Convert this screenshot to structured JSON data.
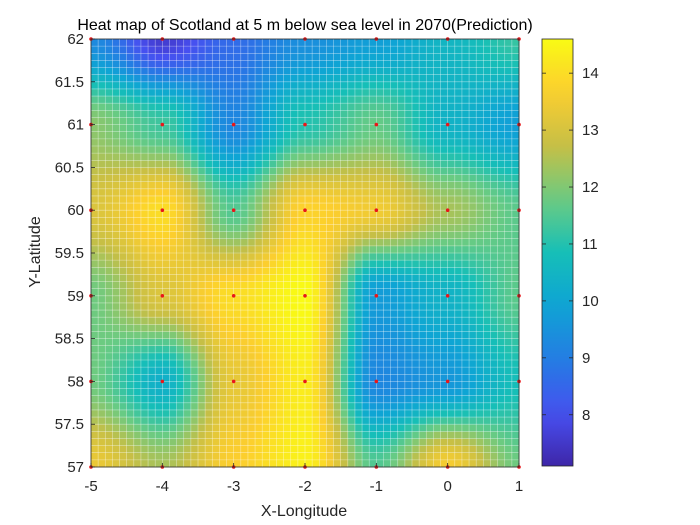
{
  "chart_data": {
    "type": "heatmap",
    "title": "Heat map of Scotland at 5 m below sea level in 2070(Prediction)",
    "xlabel": "X-Longitude",
    "ylabel": "Y-Latitude",
    "xlim": [
      -5,
      1
    ],
    "ylim": [
      57,
      62
    ],
    "x_ticks": [
      "-5",
      "-4",
      "-3",
      "-2",
      "-1",
      "0",
      "1"
    ],
    "y_ticks": [
      "57",
      "57.5",
      "58",
      "58.5",
      "59",
      "59.5",
      "60",
      "60.5",
      "61",
      "61.5",
      "62"
    ],
    "grid": true,
    "colormap": "parula",
    "colorbar": {
      "clim": [
        7.1,
        14.6
      ],
      "ticks": [
        "8",
        "9",
        "10",
        "11",
        "12",
        "13",
        "14"
      ]
    },
    "sample_x": [
      -5,
      -4,
      -3,
      -2,
      -1,
      0,
      1
    ],
    "sample_y": [
      57,
      58,
      59,
      60,
      61,
      62
    ],
    "values": [
      [
        13.4,
        12.4,
        13.7,
        14.4,
        11.5,
        13.6,
        11.8
      ],
      [
        11.8,
        10.3,
        13.3,
        14.3,
        9.2,
        9.6,
        10.8
      ],
      [
        11.8,
        13.1,
        14.0,
        14.6,
        9.7,
        10.4,
        11.6
      ],
      [
        13.1,
        14.0,
        11.5,
        13.8,
        13.5,
        12.4,
        11.6
      ],
      [
        12.1,
        11.3,
        9.2,
        11.0,
        11.7,
        10.4,
        9.8
      ],
      [
        9.3,
        7.6,
        8.6,
        9.4,
        9.8,
        10.5,
        11.2
      ]
    ]
  }
}
